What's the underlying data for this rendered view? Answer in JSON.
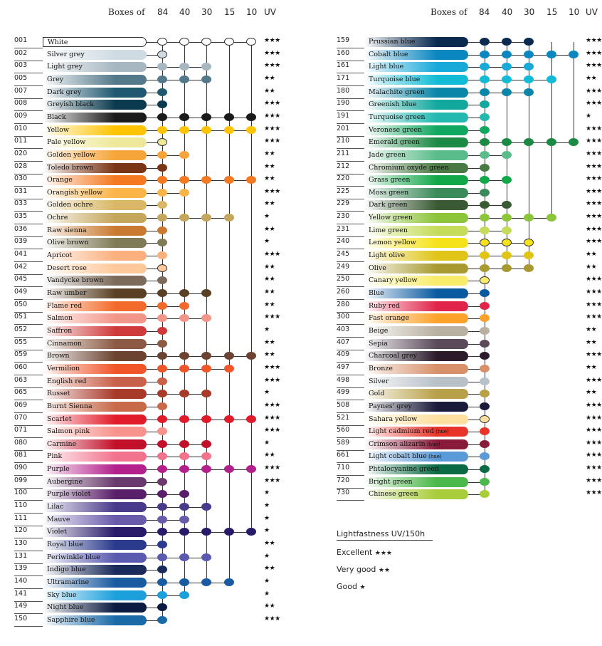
{
  "header": {
    "boxes_label": "Boxes of",
    "columns": [
      "84",
      "40",
      "30",
      "15",
      "10"
    ],
    "uv_label": "UV"
  },
  "legend": {
    "title": "Lightfastness UV/150h",
    "items": [
      {
        "label": "Excellent",
        "stars": "★★★"
      },
      {
        "label": "Very good",
        "stars": "★★"
      },
      {
        "label": "Good",
        "stars": "★"
      }
    ]
  },
  "left_colors": [
    {
      "code": "001",
      "name": "White",
      "color": "#ffffff",
      "boxes": [
        1,
        1,
        1,
        1,
        1
      ],
      "uv": "★★★"
    },
    {
      "code": "002",
      "name": "Silver grey",
      "color": "#cfdbe3",
      "boxes": [
        1,
        0,
        0,
        0,
        0
      ],
      "uv": "★★★"
    },
    {
      "code": "003",
      "name": "Light grey",
      "color": "#a6b7c2",
      "boxes": [
        1,
        1,
        1,
        0,
        0
      ],
      "uv": "★★★"
    },
    {
      "code": "005",
      "name": "Grey",
      "color": "#54798a",
      "boxes": [
        1,
        1,
        1,
        0,
        0
      ],
      "uv": "★★"
    },
    {
      "code": "007",
      "name": "Dark grey",
      "color": "#1f5870",
      "boxes": [
        1,
        0,
        0,
        0,
        0
      ],
      "uv": "★★"
    },
    {
      "code": "008",
      "name": "Greyish black",
      "color": "#0b3a4e",
      "boxes": [
        1,
        0,
        0,
        0,
        0
      ],
      "uv": "★★★"
    },
    {
      "code": "009",
      "name": "Black",
      "color": "#1b1b1b",
      "boxes": [
        1,
        1,
        1,
        1,
        1
      ],
      "uv": "★★★"
    },
    {
      "code": "010",
      "name": "Yellow",
      "color": "#ffc300",
      "boxes": [
        1,
        1,
        1,
        1,
        1
      ],
      "uv": "★★★"
    },
    {
      "code": "011",
      "name": "Pale yellow",
      "color": "#eee89a",
      "boxes": [
        1,
        0,
        0,
        0,
        0
      ],
      "uv": "★★★"
    },
    {
      "code": "020",
      "name": "Golden yellow",
      "color": "#f6a53a",
      "boxes": [
        1,
        1,
        0,
        0,
        0
      ],
      "uv": "★★"
    },
    {
      "code": "028",
      "name": "Toledo brown",
      "color": "#7a3516",
      "boxes": [
        1,
        0,
        0,
        0,
        0
      ],
      "uv": "★★"
    },
    {
      "code": "030",
      "name": "Orange",
      "color": "#f47920",
      "boxes": [
        1,
        1,
        1,
        1,
        1
      ],
      "uv": "★★"
    },
    {
      "code": "031",
      "name": "Orangish yellow",
      "color": "#fbb448",
      "boxes": [
        1,
        1,
        0,
        0,
        0
      ],
      "uv": "★★★"
    },
    {
      "code": "033",
      "name": "Golden ochre",
      "color": "#d9b766",
      "boxes": [
        1,
        0,
        0,
        0,
        0
      ],
      "uv": "★★"
    },
    {
      "code": "035",
      "name": "Ochre",
      "color": "#c4a65c",
      "boxes": [
        1,
        1,
        1,
        1,
        0
      ],
      "uv": "★"
    },
    {
      "code": "036",
      "name": "Raw sienna",
      "color": "#c97a30",
      "boxes": [
        1,
        0,
        0,
        0,
        0
      ],
      "uv": "★★"
    },
    {
      "code": "039",
      "name": "Olive brown",
      "color": "#7f7b57",
      "boxes": [
        1,
        0,
        0,
        0,
        0
      ],
      "uv": "★"
    },
    {
      "code": "041",
      "name": "Apricot",
      "color": "#fbb07e",
      "boxes": [
        1,
        0,
        0,
        0,
        0
      ],
      "uv": "★★★"
    },
    {
      "code": "042",
      "name": "Desert rose",
      "color": "#fdc99a",
      "boxes": [
        1,
        0,
        0,
        0,
        0
      ],
      "uv": "★★"
    },
    {
      "code": "045",
      "name": "Vandycke brown",
      "color": "#7c6a5a",
      "boxes": [
        1,
        0,
        0,
        0,
        0
      ],
      "uv": "★★"
    },
    {
      "code": "049",
      "name": "Raw umber",
      "color": "#5a4024",
      "boxes": [
        1,
        1,
        1,
        0,
        0
      ],
      "uv": "★★"
    },
    {
      "code": "050",
      "name": "Flame red",
      "color": "#f36b2a",
      "boxes": [
        1,
        1,
        0,
        0,
        0
      ],
      "uv": "★★"
    },
    {
      "code": "051",
      "name": "Salmon",
      "color": "#f3968a",
      "boxes": [
        1,
        1,
        1,
        0,
        0
      ],
      "uv": "★★★"
    },
    {
      "code": "052",
      "name": "Saffron",
      "color": "#cf3b3b",
      "boxes": [
        1,
        0,
        0,
        0,
        0
      ],
      "uv": "★"
    },
    {
      "code": "055",
      "name": "Cinnamon",
      "color": "#8c5a44",
      "boxes": [
        1,
        0,
        0,
        0,
        0
      ],
      "uv": "★★"
    },
    {
      "code": "059",
      "name": "Brown",
      "color": "#6b4330",
      "boxes": [
        1,
        1,
        1,
        1,
        1
      ],
      "uv": "★★"
    },
    {
      "code": "060",
      "name": "Vermilion",
      "color": "#f0562a",
      "boxes": [
        1,
        1,
        1,
        1,
        0
      ],
      "uv": "★★★"
    },
    {
      "code": "063",
      "name": "English red",
      "color": "#c9604a",
      "boxes": [
        1,
        0,
        0,
        0,
        0
      ],
      "uv": "★★★"
    },
    {
      "code": "065",
      "name": "Russet",
      "color": "#a83a2a",
      "boxes": [
        1,
        1,
        1,
        0,
        0
      ],
      "uv": "★"
    },
    {
      "code": "069",
      "name": "Burnt Sienna",
      "color": "#c8694a",
      "boxes": [
        1,
        0,
        0,
        0,
        0
      ],
      "uv": "★★★"
    },
    {
      "code": "070",
      "name": "Scarlet",
      "color": "#e21b2a",
      "boxes": [
        1,
        1,
        1,
        1,
        1
      ],
      "uv": "★★★"
    },
    {
      "code": "071",
      "name": "Salmon pink",
      "color": "#f7938c",
      "boxes": [
        1,
        0,
        0,
        0,
        0
      ],
      "uv": "★★★"
    },
    {
      "code": "080",
      "name": "Carmine",
      "color": "#c2102a",
      "boxes": [
        1,
        1,
        1,
        0,
        0
      ],
      "uv": "★"
    },
    {
      "code": "081",
      "name": "Pink",
      "color": "#f2738e",
      "boxes": [
        1,
        1,
        1,
        0,
        0
      ],
      "uv": "★★"
    },
    {
      "code": "090",
      "name": "Purple",
      "color": "#b3208c",
      "boxes": [
        1,
        1,
        1,
        1,
        1
      ],
      "uv": "★★★"
    },
    {
      "code": "099",
      "name": "Aubergine",
      "color": "#6a3a6e",
      "boxes": [
        1,
        0,
        0,
        0,
        0
      ],
      "uv": "★★★"
    },
    {
      "code": "100",
      "name": "Purple violet",
      "color": "#5a1f6a",
      "boxes": [
        1,
        1,
        0,
        0,
        0
      ],
      "uv": "★"
    },
    {
      "code": "110",
      "name": "Lilac",
      "color": "#4a3a8c",
      "boxes": [
        1,
        1,
        1,
        0,
        0
      ],
      "uv": "★"
    },
    {
      "code": "111",
      "name": "Mauve",
      "color": "#6a5aaa",
      "boxes": [
        1,
        1,
        0,
        0,
        0
      ],
      "uv": "★"
    },
    {
      "code": "120",
      "name": "Violet",
      "color": "#2a1a6a",
      "boxes": [
        1,
        1,
        1,
        1,
        1
      ],
      "uv": "★"
    },
    {
      "code": "130",
      "name": "Royal blue",
      "color": "#2a3a8c",
      "boxes": [
        1,
        0,
        0,
        0,
        0
      ],
      "uv": "★★"
    },
    {
      "code": "131",
      "name": "Periwinkle blue",
      "color": "#5a5ab0",
      "boxes": [
        1,
        1,
        1,
        0,
        0
      ],
      "uv": "★"
    },
    {
      "code": "139",
      "name": "Indigo blue",
      "color": "#1a2a5a",
      "boxes": [
        1,
        0,
        0,
        0,
        0
      ],
      "uv": "★★"
    },
    {
      "code": "140",
      "name": "Ultramarine",
      "color": "#1a5aa0",
      "boxes": [
        1,
        1,
        1,
        1,
        0
      ],
      "uv": "★"
    },
    {
      "code": "141",
      "name": "Sky blue",
      "color": "#1ca0dc",
      "boxes": [
        1,
        1,
        0,
        0,
        0
      ],
      "uv": "★"
    },
    {
      "code": "149",
      "name": "Night blue",
      "color": "#0a1a40",
      "boxes": [
        1,
        0,
        0,
        0,
        0
      ],
      "uv": "★★"
    },
    {
      "code": "150",
      "name": "Sapphire blue",
      "color": "#1a6aa8",
      "boxes": [
        1,
        0,
        0,
        0,
        0
      ],
      "uv": "★★★"
    }
  ],
  "right_colors": [
    {
      "code": "159",
      "name": "Prussian blue",
      "color": "#0a2a50",
      "boxes": [
        1,
        1,
        1,
        0,
        0
      ],
      "uv": "★★★"
    },
    {
      "code": "160",
      "name": "Cobalt blue",
      "color": "#0a86c0",
      "boxes": [
        1,
        1,
        1,
        1,
        1
      ],
      "uv": "★★★"
    },
    {
      "code": "161",
      "name": "Light blue",
      "color": "#19a9d9",
      "boxes": [
        1,
        1,
        1,
        0,
        0
      ],
      "uv": "★★★"
    },
    {
      "code": "171",
      "name": "Turquoise blue",
      "color": "#13bcd6",
      "boxes": [
        1,
        1,
        1,
        1,
        0
      ],
      "uv": "★★"
    },
    {
      "code": "180",
      "name": "Malachite green",
      "color": "#0a86a8",
      "boxes": [
        1,
        1,
        1,
        0,
        0
      ],
      "uv": "★★★"
    },
    {
      "code": "190",
      "name": "Greenish blue",
      "color": "#13a89e",
      "boxes": [
        1,
        0,
        0,
        0,
        0
      ],
      "uv": "★★★"
    },
    {
      "code": "191",
      "name": "Turquoise green",
      "color": "#23b9b0",
      "boxes": [
        1,
        0,
        0,
        0,
        0
      ],
      "uv": "★"
    },
    {
      "code": "201",
      "name": "Veronese green",
      "color": "#10a860",
      "boxes": [
        1,
        0,
        0,
        0,
        0
      ],
      "uv": "★★★"
    },
    {
      "code": "210",
      "name": "Emerald green",
      "color": "#1a8a44",
      "boxes": [
        1,
        1,
        1,
        1,
        1
      ],
      "uv": "★★★"
    },
    {
      "code": "211",
      "name": "Jade green",
      "color": "#5abc8a",
      "boxes": [
        1,
        1,
        0,
        0,
        0
      ],
      "uv": "★★★"
    },
    {
      "code": "212",
      "name": "Chromium oxyde green",
      "color": "#4a7a44",
      "boxes": [
        1,
        0,
        0,
        0,
        0
      ],
      "uv": "★★★"
    },
    {
      "code": "220",
      "name": "Grass green",
      "color": "#12a84a",
      "boxes": [
        1,
        1,
        0,
        0,
        0
      ],
      "uv": "★★★"
    },
    {
      "code": "225",
      "name": "Moss green",
      "color": "#3a8a5a",
      "boxes": [
        1,
        0,
        0,
        0,
        0
      ],
      "uv": "★★★"
    },
    {
      "code": "229",
      "name": "Dark green",
      "color": "#3a5a34",
      "boxes": [
        1,
        1,
        0,
        0,
        0
      ],
      "uv": "★★★"
    },
    {
      "code": "230",
      "name": "Yellow green",
      "color": "#8cc43a",
      "boxes": [
        1,
        1,
        1,
        1,
        0
      ],
      "uv": "★★★"
    },
    {
      "code": "231",
      "name": "Lime green",
      "color": "#c4dc5a",
      "boxes": [
        1,
        1,
        0,
        0,
        0
      ],
      "uv": "★★★"
    },
    {
      "code": "240",
      "name": "Lemon yellow",
      "color": "#f6e21a",
      "boxes": [
        1,
        1,
        1,
        0,
        0
      ],
      "uv": "★★★"
    },
    {
      "code": "245",
      "name": "Light olive",
      "color": "#e0c418",
      "boxes": [
        1,
        1,
        1,
        0,
        0
      ],
      "uv": "★★"
    },
    {
      "code": "249",
      "name": "Olive",
      "color": "#a89a30",
      "boxes": [
        1,
        1,
        1,
        0,
        0
      ],
      "uv": "★★"
    },
    {
      "code": "250",
      "name": "Canary yellow",
      "color": "#f8ec6a",
      "boxes": [
        1,
        0,
        0,
        0,
        0
      ],
      "uv": "★★★"
    },
    {
      "code": "260",
      "name": "Blue",
      "color": "#0a5aa0",
      "boxes": [
        1,
        0,
        0,
        0,
        0
      ],
      "uv": "★★★"
    },
    {
      "code": "280",
      "name": "Ruby red",
      "color": "#e0244a",
      "boxes": [
        1,
        0,
        0,
        0,
        0
      ],
      "uv": "★★★"
    },
    {
      "code": "300",
      "name": "Fast orange",
      "color": "#fca22a",
      "boxes": [
        1,
        0,
        0,
        0,
        0
      ],
      "uv": "★★★"
    },
    {
      "code": "403",
      "name": "Beige",
      "color": "#b8b0a0",
      "boxes": [
        1,
        0,
        0,
        0,
        0
      ],
      "uv": "★★"
    },
    {
      "code": "407",
      "name": "Sepia",
      "color": "#5a4a5a",
      "boxes": [
        1,
        0,
        0,
        0,
        0
      ],
      "uv": "★★"
    },
    {
      "code": "409",
      "name": "Charcoal grey",
      "color": "#2a1a2a",
      "boxes": [
        1,
        0,
        0,
        0,
        0
      ],
      "uv": "★★★"
    },
    {
      "code": "497",
      "name": "Bronze",
      "color": "#d8906a",
      "boxes": [
        1,
        0,
        0,
        0,
        0
      ],
      "uv": "★★"
    },
    {
      "code": "498",
      "name": "Silver",
      "color": "#b8c0c8",
      "boxes": [
        1,
        0,
        0,
        0,
        0
      ],
      "uv": "★★★"
    },
    {
      "code": "499",
      "name": "Gold",
      "color": "#b8a048",
      "boxes": [
        1,
        0,
        0,
        0,
        0
      ],
      "uv": "★★"
    },
    {
      "code": "508",
      "name": "Paynes' grey",
      "color": "#1a1a3a",
      "boxes": [
        1,
        0,
        0,
        0,
        0
      ],
      "uv": "★★★"
    },
    {
      "code": "521",
      "name": "Sahara yellow",
      "color": "#fde0a0",
      "boxes": [
        1,
        0,
        0,
        0,
        0
      ],
      "uv": "★★★"
    },
    {
      "code": "560",
      "name": "Light cadmium red",
      "hue": "(hue)",
      "color": "#e8332a",
      "boxes": [
        1,
        0,
        0,
        0,
        0
      ],
      "uv": "★★★"
    },
    {
      "code": "589",
      "name": "Crimson alizarin",
      "hue": "(hue)",
      "color": "#8a1a3a",
      "boxes": [
        1,
        0,
        0,
        0,
        0
      ],
      "uv": "★★★"
    },
    {
      "code": "661",
      "name": "Light cobalt blue",
      "hue": "(hue)",
      "color": "#5a9ad8",
      "boxes": [
        1,
        0,
        0,
        0,
        0
      ],
      "uv": "★★★"
    },
    {
      "code": "710",
      "name": "Phtalocyanine green",
      "color": "#0a6a44",
      "boxes": [
        1,
        0,
        0,
        0,
        0
      ],
      "uv": "★★★"
    },
    {
      "code": "720",
      "name": "Bright green",
      "color": "#4ab84a",
      "boxes": [
        1,
        0,
        0,
        0,
        0
      ],
      "uv": "★★★"
    },
    {
      "code": "730",
      "name": "Chinese green",
      "color": "#a8cc3a",
      "boxes": [
        1,
        0,
        0,
        0,
        0
      ],
      "uv": "★★★"
    }
  ]
}
